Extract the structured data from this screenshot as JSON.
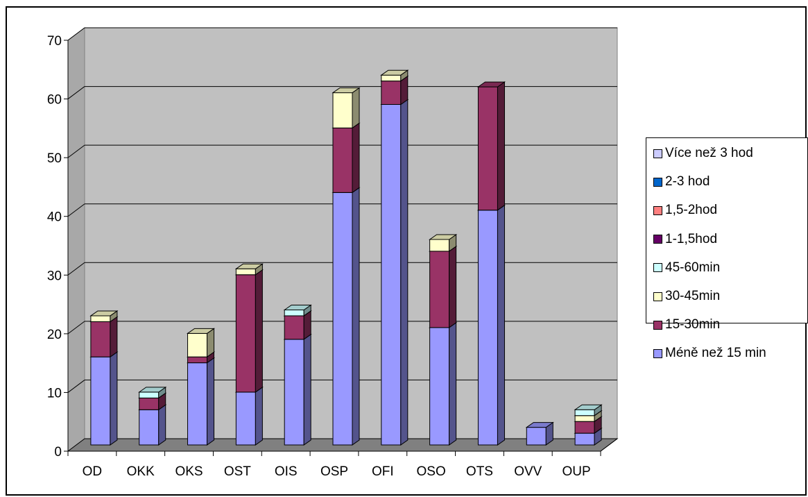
{
  "chart_data": {
    "type": "bar",
    "stacked": true,
    "three_d": true,
    "title": "",
    "xlabel": "",
    "ylabel": "",
    "ylim": [
      0,
      70
    ],
    "yticks": [
      "0",
      "10",
      "20",
      "30",
      "40",
      "50",
      "60",
      "70"
    ],
    "grid": true,
    "legend_position": "right",
    "categories": [
      "OD",
      "OKK",
      "OKS",
      "OST",
      "OIS",
      "OSP",
      "OFI",
      "OSO",
      "OTS",
      "OVV",
      "OUP"
    ],
    "series": [
      {
        "name": "Méně než 15 min",
        "color": "#9999ff",
        "values": [
          15,
          6,
          14,
          9,
          18,
          43,
          58,
          20,
          40,
          3,
          2
        ]
      },
      {
        "name": "15-30min",
        "color": "#993366",
        "values": [
          6,
          2,
          1,
          20,
          4,
          11,
          4,
          13,
          21,
          0,
          2
        ]
      },
      {
        "name": "30-45min",
        "color": "#ffffcc",
        "values": [
          1,
          0,
          4,
          1,
          0,
          6,
          1,
          2,
          0,
          0,
          1
        ]
      },
      {
        "name": "45-60min",
        "color": "#ccffff",
        "values": [
          0,
          1,
          0,
          0,
          1,
          0,
          0,
          0,
          0,
          0,
          1
        ]
      },
      {
        "name": "1-1,5hod",
        "color": "#660066",
        "values": [
          0,
          0,
          0,
          0,
          0,
          0,
          0,
          0,
          0,
          0,
          0
        ]
      },
      {
        "name": "1,5-2hod",
        "color": "#ff8080",
        "values": [
          0,
          0,
          0,
          0,
          0,
          0,
          0,
          0,
          0,
          0,
          0
        ]
      },
      {
        "name": "2-3 hod",
        "color": "#0066cc",
        "values": [
          0,
          0,
          0,
          0,
          0,
          0,
          0,
          0,
          0,
          0,
          0
        ]
      },
      {
        "name": "Více než 3 hod",
        "color": "#ccccff",
        "values": [
          0,
          0,
          0,
          0,
          0,
          0,
          0,
          0,
          0,
          0,
          0
        ]
      }
    ],
    "legend_order": [
      "Více než 3 hod",
      "2-3 hod",
      "1,5-2hod",
      "1-1,5hod",
      "45-60min",
      "30-45min",
      "15-30min",
      "Méně než 15 min"
    ],
    "colors": {
      "wall": "#c0c0c0",
      "floor": "#808080",
      "gridline": "#000000"
    }
  }
}
